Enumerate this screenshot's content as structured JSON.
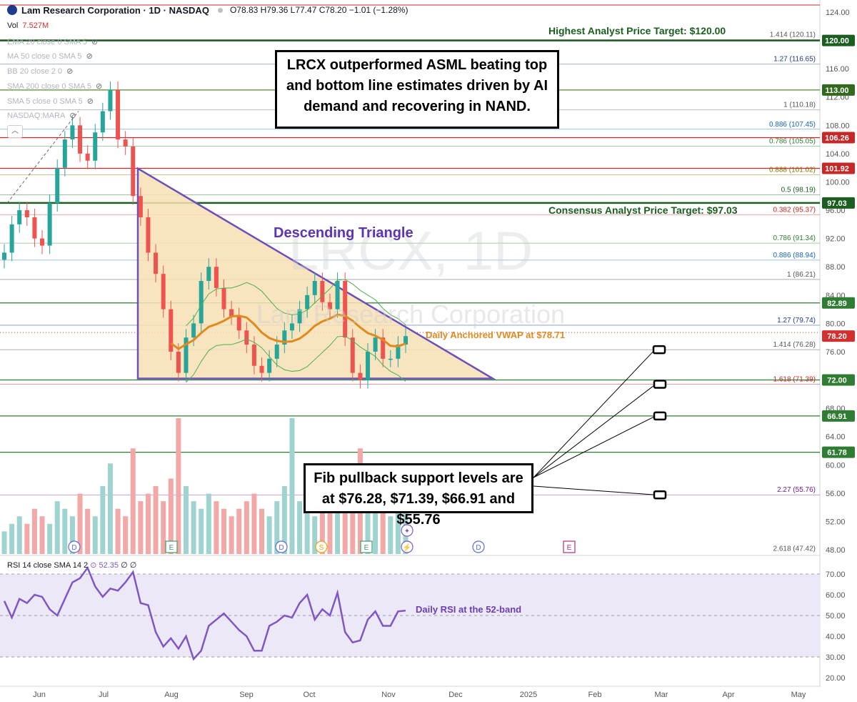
{
  "header": {
    "symbol": "Lam Research Corporation · 1D · NASDAQ",
    "ohlc": "O78.83 H79.36 L77.47 C78.20 −1.01 (−1.28%)"
  },
  "indicators": [
    "EMA 20 close 0 SMA 5",
    "MA 50 close 0 SMA 5",
    "BB 20 close 2 0",
    "SMA 200 close 0 SMA 5",
    "SMA 5 close 0 SMA 5",
    "NASDAQ:MARA"
  ],
  "volume": {
    "label": "Vol",
    "value": "7.527M"
  },
  "rsi": {
    "label": "RSI 14 close SMA 14 2",
    "value": "52.35",
    "extra": "∅ ∅"
  },
  "watermark": {
    "ticker": "LRCX, 1D",
    "name": "Lam Research Corporation"
  },
  "annotations": {
    "note_top": "LRCX outperformed ASML beating top and bottom line estimates driven by AI demand and recovering in NAND.",
    "note_fib": "Fib pullback support levels are at $76.28, $71.39, $66.91 and $55.76",
    "highest_target": "Highest Analyst Price Target: $120.00",
    "consensus_target": "Consensus Analyst Price Target: $97.03",
    "triangle": "Descending Triangle",
    "vwap": "Daily Anchored VWAP at $78.71",
    "rsi_note": "Daily RSI at the 52-band"
  },
  "colors": {
    "up": "#26a69a",
    "down": "#ef5350",
    "triangle_fill": "#f7e1b5",
    "triangle_stroke": "#6b4fbb",
    "vwap": "#e08a1e",
    "rsi": "#7e57c2",
    "rsi_band": "#ece8f7"
  },
  "chart_data": [
    {
      "type": "line",
      "title": "Lam Research Corporation · 1D · NASDAQ",
      "ylabel": "",
      "x_ticks": [
        "Jun",
        "Jul",
        "Aug",
        "Sep",
        "Oct",
        "Nov",
        "Dec",
        "2025",
        "Feb",
        "Mar",
        "Apr",
        "May"
      ],
      "y_ticks": [
        48,
        52,
        56,
        60,
        64,
        68,
        72,
        76,
        80,
        84,
        88,
        92,
        96,
        100,
        104,
        108,
        112,
        116,
        124
      ],
      "ylim": [
        47,
        125
      ],
      "price_labels": [
        {
          "value": 120.0,
          "label": "120.00",
          "color": "#1b5e20"
        },
        {
          "value": 113.0,
          "label": "113.00",
          "color": "#33691e"
        },
        {
          "value": 106.26,
          "label": "106.26",
          "color": "#c62828"
        },
        {
          "value": 101.92,
          "label": "101.92",
          "color": "#c62828"
        },
        {
          "value": 97.03,
          "label": "97.03",
          "color": "#1b5e20"
        },
        {
          "value": 82.89,
          "label": "82.89",
          "color": "#2e7d32"
        },
        {
          "value": 78.2,
          "label": "78.20",
          "color": "#d32f2f"
        },
        {
          "value": 72.0,
          "label": "72.00",
          "color": "#2e7d32"
        },
        {
          "value": 66.91,
          "label": "66.91",
          "color": "#2e7d32"
        },
        {
          "value": 61.78,
          "label": "61.78",
          "color": "#2e7d32"
        }
      ],
      "fib_levels": [
        {
          "label": "1.414 (120.11)",
          "value": 120.11,
          "color": "#555555"
        },
        {
          "label": "1.27 (116.65)",
          "value": 116.65,
          "color": "#1e3a8a"
        },
        {
          "label": "1 (110.18)",
          "value": 110.18,
          "color": "#555555"
        },
        {
          "label": "0.886 (107.45)",
          "value": 107.45,
          "color": "#1565c0"
        },
        {
          "label": "0.786 (105.05)",
          "value": 105.05,
          "color": "#2e7d32"
        },
        {
          "label": "0.888 (101.02)",
          "value": 101.02,
          "color": "#8a6d00"
        },
        {
          "label": "0.5 (98.19)",
          "value": 98.19,
          "color": "#1b5e20"
        },
        {
          "label": "0.382 (95.37)",
          "value": 95.37,
          "color": "#c62828"
        },
        {
          "label": "0.786 (91.34)",
          "value": 91.34,
          "color": "#2e7d32"
        },
        {
          "label": "0.886 (88.94)",
          "value": 88.94,
          "color": "#1565c0"
        },
        {
          "label": "1 (86.21)",
          "value": 86.21,
          "color": "#555555"
        },
        {
          "label": "1.27 (79.74)",
          "value": 79.74,
          "color": "#1e3a8a"
        },
        {
          "label": "1.414 (76.28)",
          "value": 76.28,
          "color": "#555555"
        },
        {
          "label": "1.618 (71.39)",
          "value": 71.39,
          "color": "#c62828"
        },
        {
          "label": "2.27 (55.76)",
          "value": 55.76,
          "color": "#6a1b9a"
        },
        {
          "label": "2.618 (47.42)",
          "value": 47.42,
          "color": "#555555"
        }
      ],
      "horizontal_levels": [
        120.0,
        113.0,
        106.26,
        101.92,
        97.03,
        82.89,
        72.0,
        66.91,
        61.78
      ],
      "closes": [
        90,
        94,
        96,
        95,
        92,
        91,
        97,
        102,
        106,
        108,
        104,
        103,
        107,
        110,
        113,
        106,
        105,
        98,
        95,
        90,
        87,
        82,
        76,
        73,
        78,
        80,
        86,
        88,
        85,
        82,
        81,
        79,
        77,
        74,
        73,
        75,
        77,
        79,
        80,
        82,
        84,
        86,
        83,
        82,
        86,
        78,
        73,
        72,
        76,
        78,
        75,
        75,
        77,
        78.2
      ],
      "vwap": 78.71,
      "triangle": {
        "upper_start": 101.9,
        "lower": 72.0
      },
      "series": [
        {
          "name": "Daily Anchored VWAP",
          "value": 78.71
        }
      ]
    },
    {
      "type": "bar",
      "title": "Volume",
      "values": [
        3,
        4,
        5,
        4,
        6,
        5,
        4,
        7,
        6,
        5,
        8,
        6,
        5,
        9,
        12,
        6,
        5,
        14,
        7,
        8,
        9,
        7,
        10,
        18,
        9,
        7,
        6,
        8,
        7,
        6,
        5,
        6,
        7,
        8,
        6,
        5,
        7,
        9,
        18,
        7,
        6,
        5,
        8,
        10,
        7,
        12,
        8,
        14,
        10,
        7,
        6,
        5,
        7,
        6
      ],
      "markers": [
        "D",
        "E",
        "D",
        "S",
        "E",
        "D",
        "E"
      ]
    },
    {
      "type": "line",
      "title": "RSI 14 close SMA 14 2",
      "y_ticks": [
        20,
        30,
        40,
        50,
        60,
        70
      ],
      "ylim": [
        17,
        75
      ],
      "band": [
        30,
        70
      ],
      "values": [
        57,
        49,
        58,
        56,
        60,
        59,
        53,
        50,
        58,
        66,
        68,
        73,
        64,
        59,
        63,
        62,
        66,
        71,
        56,
        55,
        42,
        35,
        39,
        34,
        40,
        29,
        33,
        45,
        48,
        51,
        47,
        43,
        40,
        33,
        33,
        45,
        47,
        50,
        49,
        56,
        60,
        48,
        53,
        50,
        61,
        42,
        37,
        38,
        48,
        52,
        45,
        45,
        52,
        52.35
      ]
    }
  ]
}
